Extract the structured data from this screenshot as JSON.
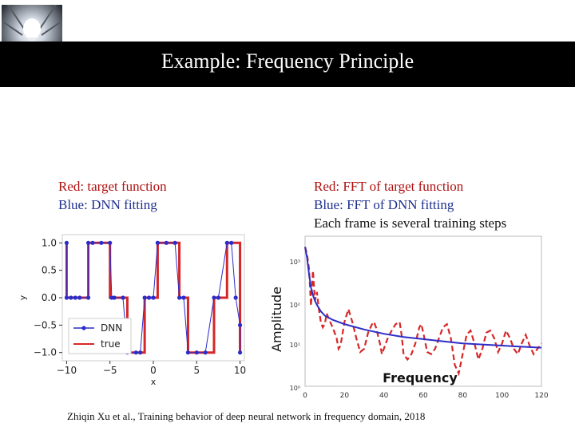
{
  "slide": {
    "title": "Example: Frequency Principle",
    "left_caption": [
      "Red: target function",
      "Blue: DNN fitting"
    ],
    "right_caption": [
      "Red: FFT of target function",
      "Blue: FFT of DNN fitting",
      "Each frame is several training steps"
    ],
    "citation": "Zhiqin Xu et al., Training behavior of deep neural network in frequency domain, 2018"
  },
  "colors": {
    "target": "#d62728",
    "dnn": "#2c2cc8",
    "title_bar": "#000000",
    "caption_red": "#b01010",
    "caption_blue": "#1f2f8f"
  },
  "logo": {
    "icon": "lightbulb-tunnel-icon"
  },
  "chart_data": [
    {
      "type": "line",
      "xlabel": "x",
      "ylabel": "y",
      "xlim": [
        -10.5,
        10.5
      ],
      "ylim": [
        -1.15,
        1.15
      ],
      "x_ticks": [
        "−10",
        "−5",
        "0",
        "5",
        "10"
      ],
      "y_ticks": [
        "1.0",
        "0.5",
        "0.0",
        "−0.5",
        "−1.0"
      ],
      "x_tick_values": [
        -10,
        -5,
        0,
        5,
        10
      ],
      "y_tick_values": [
        1.0,
        0.5,
        0.0,
        -0.5,
        -1.0
      ],
      "legend": "lower-left",
      "series": [
        {
          "name": "DNN",
          "marker": "dot",
          "x": [
            -10,
            -10,
            -9.5,
            -9,
            -8.5,
            -7.5,
            -7.5,
            -7,
            -6,
            -5,
            -4.8,
            -4.5,
            -3.5,
            -3,
            -2,
            -1.5,
            -1,
            -0.5,
            0,
            0.5,
            0.5,
            1.5,
            2.5,
            3,
            3.5,
            4,
            5,
            6,
            7,
            7.5,
            8.5,
            9,
            9.5,
            10,
            10
          ],
          "y": [
            1.0,
            0.0,
            0.0,
            0.0,
            0.0,
            0.0,
            1.0,
            1.0,
            1.0,
            1.0,
            0.0,
            0.0,
            0.0,
            -1.0,
            -1.0,
            -1.0,
            0.0,
            0.0,
            0.0,
            1.0,
            1.0,
            1.0,
            1.0,
            0.0,
            0.0,
            -1.0,
            -1.0,
            -1.0,
            0.0,
            0.0,
            1.0,
            1.0,
            0.0,
            -0.5,
            -1.0
          ]
        },
        {
          "name": "true",
          "x": [
            -10,
            -10,
            -7.5,
            -7.5,
            -5,
            -5,
            -3,
            -3,
            -1,
            -1,
            0.5,
            0.5,
            3,
            3,
            4,
            4,
            7,
            7,
            8.5,
            8.5,
            10,
            10
          ],
          "y": [
            1,
            0,
            0,
            1,
            1,
            0,
            0,
            -1,
            -1,
            0,
            0,
            1,
            1,
            0,
            0,
            -1,
            -1,
            0,
            0,
            1,
            1,
            -1
          ]
        }
      ]
    },
    {
      "type": "line",
      "xlabel": "Frequency",
      "ylabel": "Amplitude",
      "xlim": [
        0,
        120
      ],
      "y_scale": "log",
      "x_ticks": [
        "0",
        "20",
        "40",
        "60",
        "80",
        "100",
        "120"
      ],
      "x_tick_values": [
        0,
        20,
        40,
        60,
        80,
        100,
        120
      ],
      "y_ticks": [
        "10³",
        "10²",
        "10¹",
        "10⁰"
      ],
      "series": [
        {
          "style": "dashed",
          "x": [
            0,
            1,
            2,
            3,
            4,
            5,
            6,
            7,
            8,
            9,
            10,
            11,
            12,
            14,
            16,
            17,
            18,
            20,
            22,
            24,
            26,
            28,
            30,
            32,
            34,
            35,
            36,
            38,
            39,
            40,
            42,
            44,
            46,
            48,
            49,
            50,
            52,
            54,
            56,
            58,
            59,
            60,
            62,
            64,
            66,
            68,
            70,
            72,
            74,
            76,
            78,
            80,
            82,
            84,
            86,
            88,
            90,
            92,
            94,
            96,
            98,
            100,
            102,
            104,
            106,
            108,
            110,
            112,
            114,
            116,
            118,
            120
          ],
          "y": [
            1.0,
            0.93,
            0.8,
            0.45,
            0.78,
            0.5,
            0.58,
            0.42,
            0.3,
            0.25,
            0.28,
            0.38,
            0.33,
            0.25,
            0.15,
            0.05,
            0.08,
            0.3,
            0.42,
            0.3,
            0.15,
            0.02,
            0.05,
            0.2,
            0.28,
            0.3,
            0.25,
            0.1,
            0.0,
            0.05,
            0.15,
            0.22,
            0.28,
            0.3,
            0.18,
            0.0,
            -0.05,
            0.0,
            0.1,
            0.25,
            0.28,
            0.2,
            0.02,
            0.0,
            0.05,
            0.15,
            0.25,
            0.28,
            0.15,
            -0.1,
            -0.18,
            0.0,
            0.18,
            0.22,
            0.1,
            -0.05,
            0.05,
            0.2,
            0.22,
            0.15,
            0.02,
            0.1,
            0.22,
            0.15,
            0.05,
            0.0,
            0.1,
            0.18,
            0.08,
            0.0,
            0.05,
            0.1
          ]
        },
        {
          "style": "solid",
          "x": [
            0,
            1,
            2,
            3,
            4,
            5,
            6,
            8,
            10,
            14,
            20,
            30,
            40,
            50,
            60,
            70,
            80,
            90,
            100,
            110,
            120
          ],
          "y": [
            1.0,
            0.9,
            0.75,
            0.62,
            0.55,
            0.5,
            0.46,
            0.4,
            0.36,
            0.32,
            0.28,
            0.23,
            0.19,
            0.16,
            0.14,
            0.12,
            0.1,
            0.09,
            0.08,
            0.07,
            0.06
          ]
        }
      ]
    }
  ]
}
